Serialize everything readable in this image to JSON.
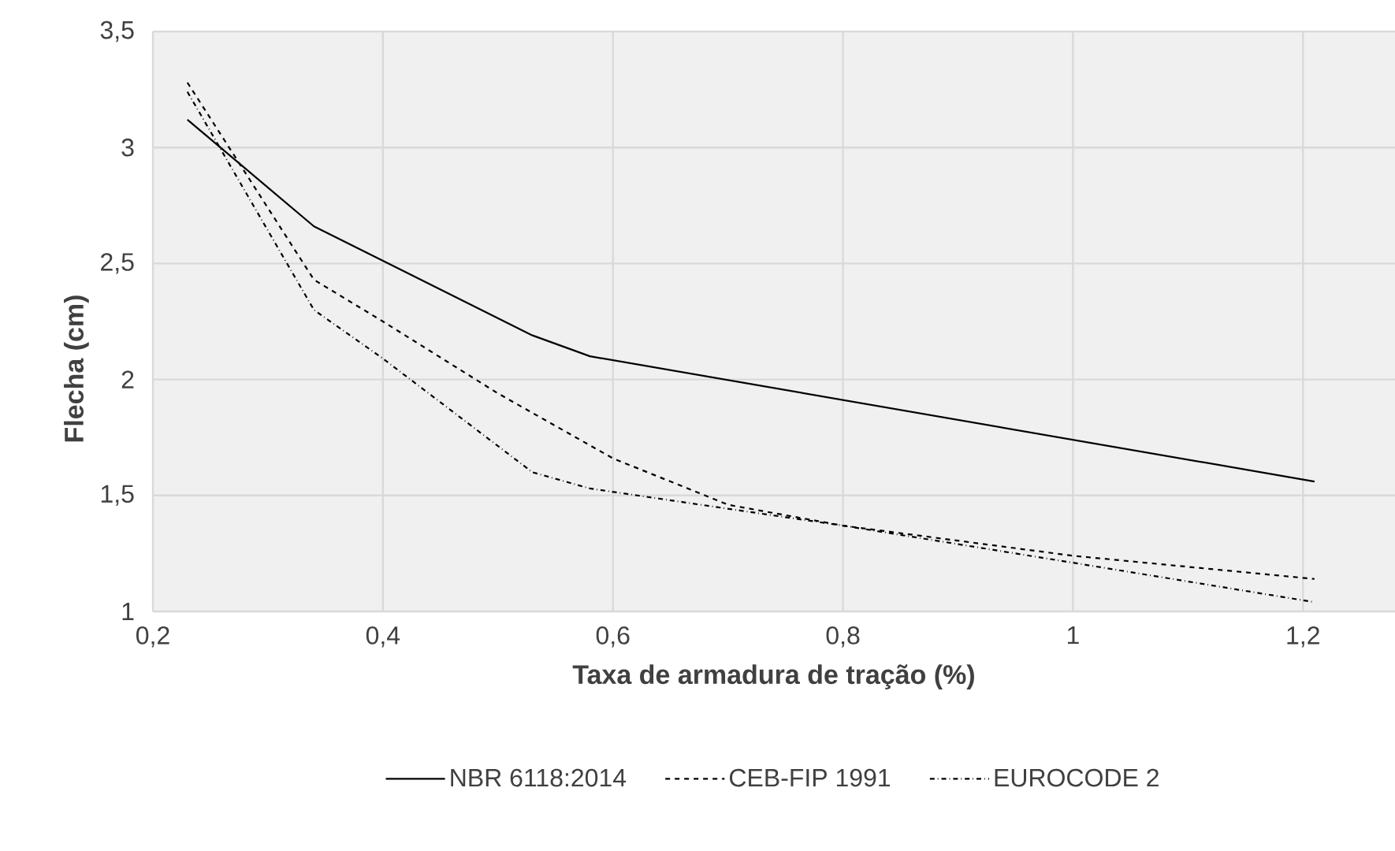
{
  "chart_data": {
    "type": "line",
    "xlabel": "Taxa de armadura de tração (%)",
    "ylabel": "Flecha (cm)",
    "xlim": [
      0.2,
      1.28
    ],
    "ylim": [
      1,
      3.5
    ],
    "xticks": [
      {
        "value": 0.2,
        "label": "0,2"
      },
      {
        "value": 0.4,
        "label": "0,4"
      },
      {
        "value": 0.6,
        "label": "0,6"
      },
      {
        "value": 0.8,
        "label": "0,8"
      },
      {
        "value": 1,
        "label": "1"
      },
      {
        "value": 1.2,
        "label": "1,2"
      }
    ],
    "yticks": [
      {
        "value": 1,
        "label": "1"
      },
      {
        "value": 1.5,
        "label": "1,5"
      },
      {
        "value": 2,
        "label": "2"
      },
      {
        "value": 2.5,
        "label": "2,5"
      },
      {
        "value": 3,
        "label": "3"
      },
      {
        "value": 3.5,
        "label": "3,5"
      }
    ],
    "grid": true,
    "legend": "bottom",
    "marker": "none",
    "series": [
      {
        "name": "NBR 6118:2014",
        "color": "#000000",
        "line_style": "solid",
        "x": [
          0.23,
          0.34,
          0.53,
          0.58,
          1.21
        ],
        "values": [
          3.12,
          2.66,
          2.19,
          2.1,
          1.56
        ]
      },
      {
        "name": "CEB-FIP 1991",
        "color": "#000000",
        "line_style": "dashed",
        "x": [
          0.23,
          0.34,
          0.4,
          0.5,
          0.6,
          0.7,
          0.8,
          1.0,
          1.21
        ],
        "values": [
          3.28,
          2.43,
          2.25,
          1.94,
          1.66,
          1.46,
          1.37,
          1.24,
          1.14
        ]
      },
      {
        "name": "EUROCODE 2",
        "color": "#000000",
        "line_style": "dashdotted",
        "x": [
          0.23,
          0.34,
          0.4,
          0.53,
          0.58,
          0.8,
          1.0,
          1.21
        ],
        "values": [
          3.24,
          2.3,
          2.09,
          1.6,
          1.53,
          1.37,
          1.21,
          1.04
        ]
      }
    ]
  }
}
